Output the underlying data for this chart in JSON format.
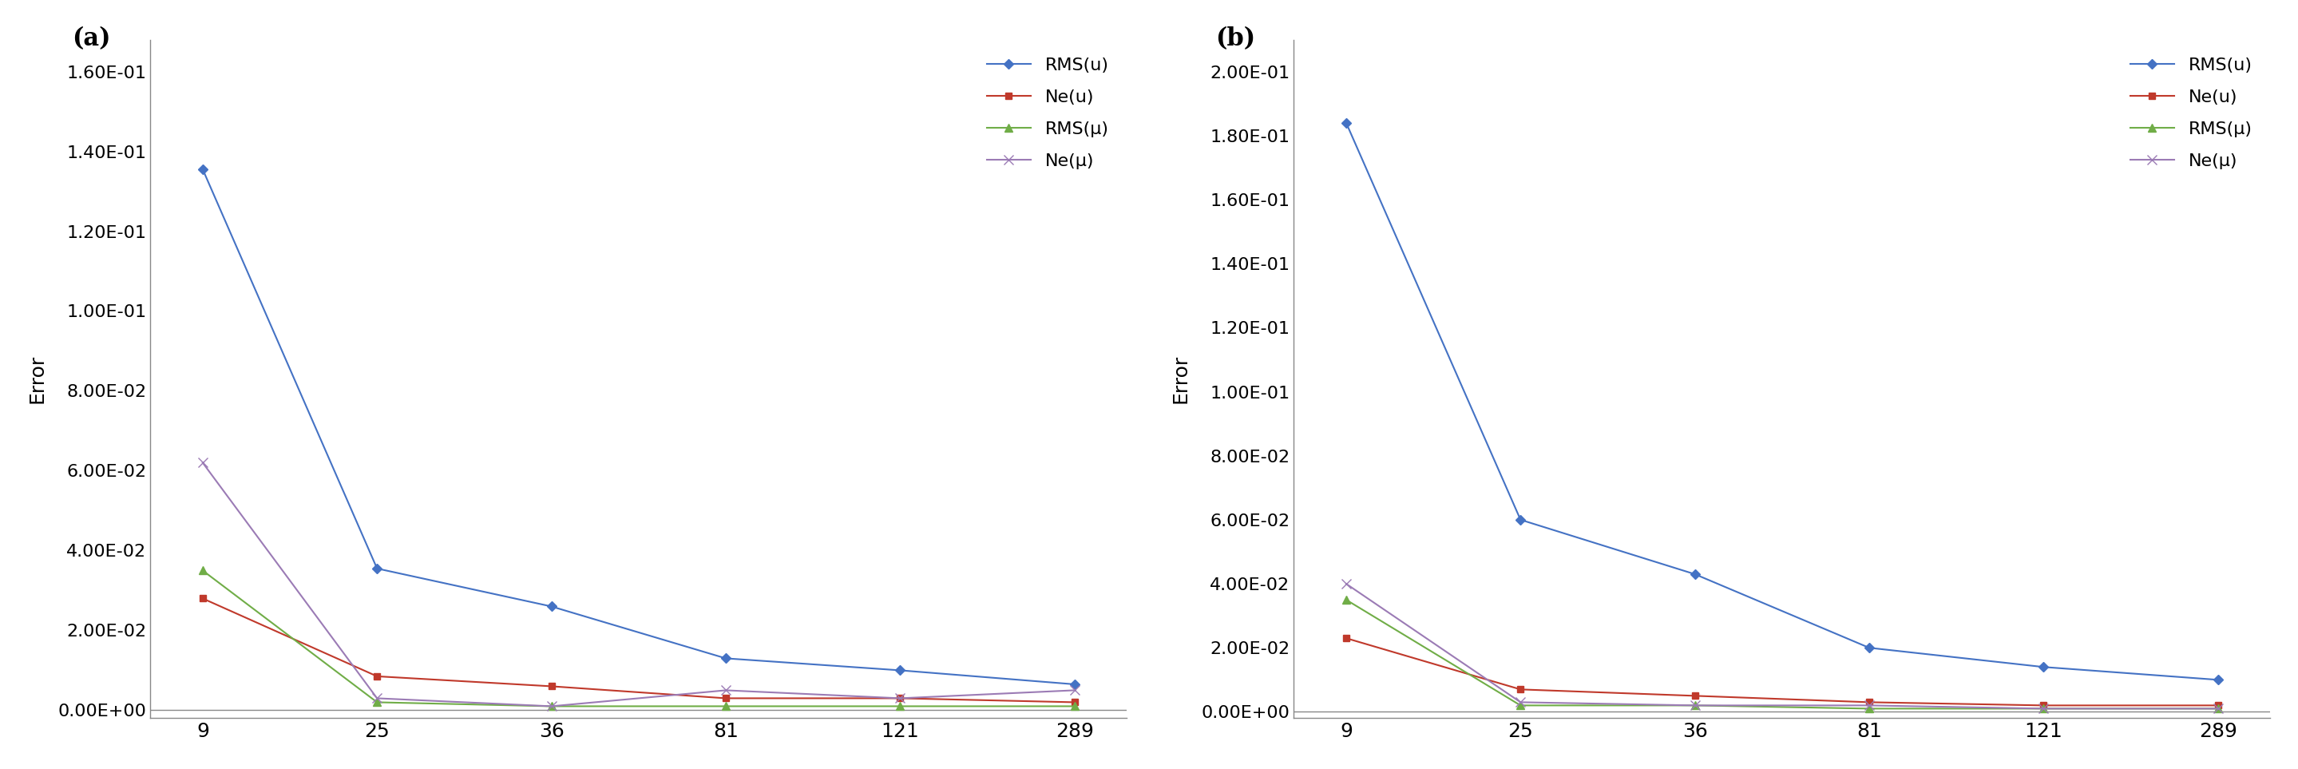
{
  "nodes": [
    9,
    25,
    36,
    81,
    121,
    289
  ],
  "x_positions": [
    0,
    1,
    2,
    3,
    4,
    5
  ],
  "panel_a": {
    "label": "(a)",
    "RMS_u": [
      0.1355,
      0.0355,
      0.026,
      0.013,
      0.01,
      0.0065
    ],
    "Ne_u": [
      0.028,
      0.0085,
      0.006,
      0.003,
      0.003,
      0.002
    ],
    "RMS_mu": [
      0.035,
      0.002,
      0.001,
      0.001,
      0.001,
      0.001
    ],
    "Ne_mu": [
      0.062,
      0.003,
      0.001,
      0.005,
      0.003,
      0.005
    ],
    "ylim": [
      -0.002,
      0.168
    ],
    "yticks": [
      0.0,
      0.02,
      0.04,
      0.06,
      0.08,
      0.1,
      0.12,
      0.14,
      0.16
    ]
  },
  "panel_b": {
    "label": "(b)",
    "RMS_u": [
      0.184,
      0.06,
      0.043,
      0.02,
      0.014,
      0.01
    ],
    "Ne_u": [
      0.023,
      0.007,
      0.005,
      0.003,
      0.002,
      0.002
    ],
    "RMS_mu": [
      0.035,
      0.002,
      0.002,
      0.001,
      0.001,
      0.001
    ],
    "Ne_mu": [
      0.04,
      0.003,
      0.002,
      0.002,
      0.001,
      0.001
    ],
    "ylim": [
      -0.002,
      0.21
    ],
    "yticks": [
      0.0,
      0.02,
      0.04,
      0.06,
      0.08,
      0.1,
      0.12,
      0.14,
      0.16,
      0.18,
      0.2
    ]
  },
  "colors": {
    "RMS_u": "#4472C4",
    "Ne_u": "#C0392B",
    "Ne_u_dark": "#8B0000",
    "RMS_mu": "#70AD47",
    "Ne_mu": "#9B7BB5"
  },
  "legend_labels": [
    "RMS(u)",
    "Ne(u)",
    "RMS(μ)",
    "Ne(μ)"
  ],
  "ylabel": "Error",
  "xlabel": ""
}
